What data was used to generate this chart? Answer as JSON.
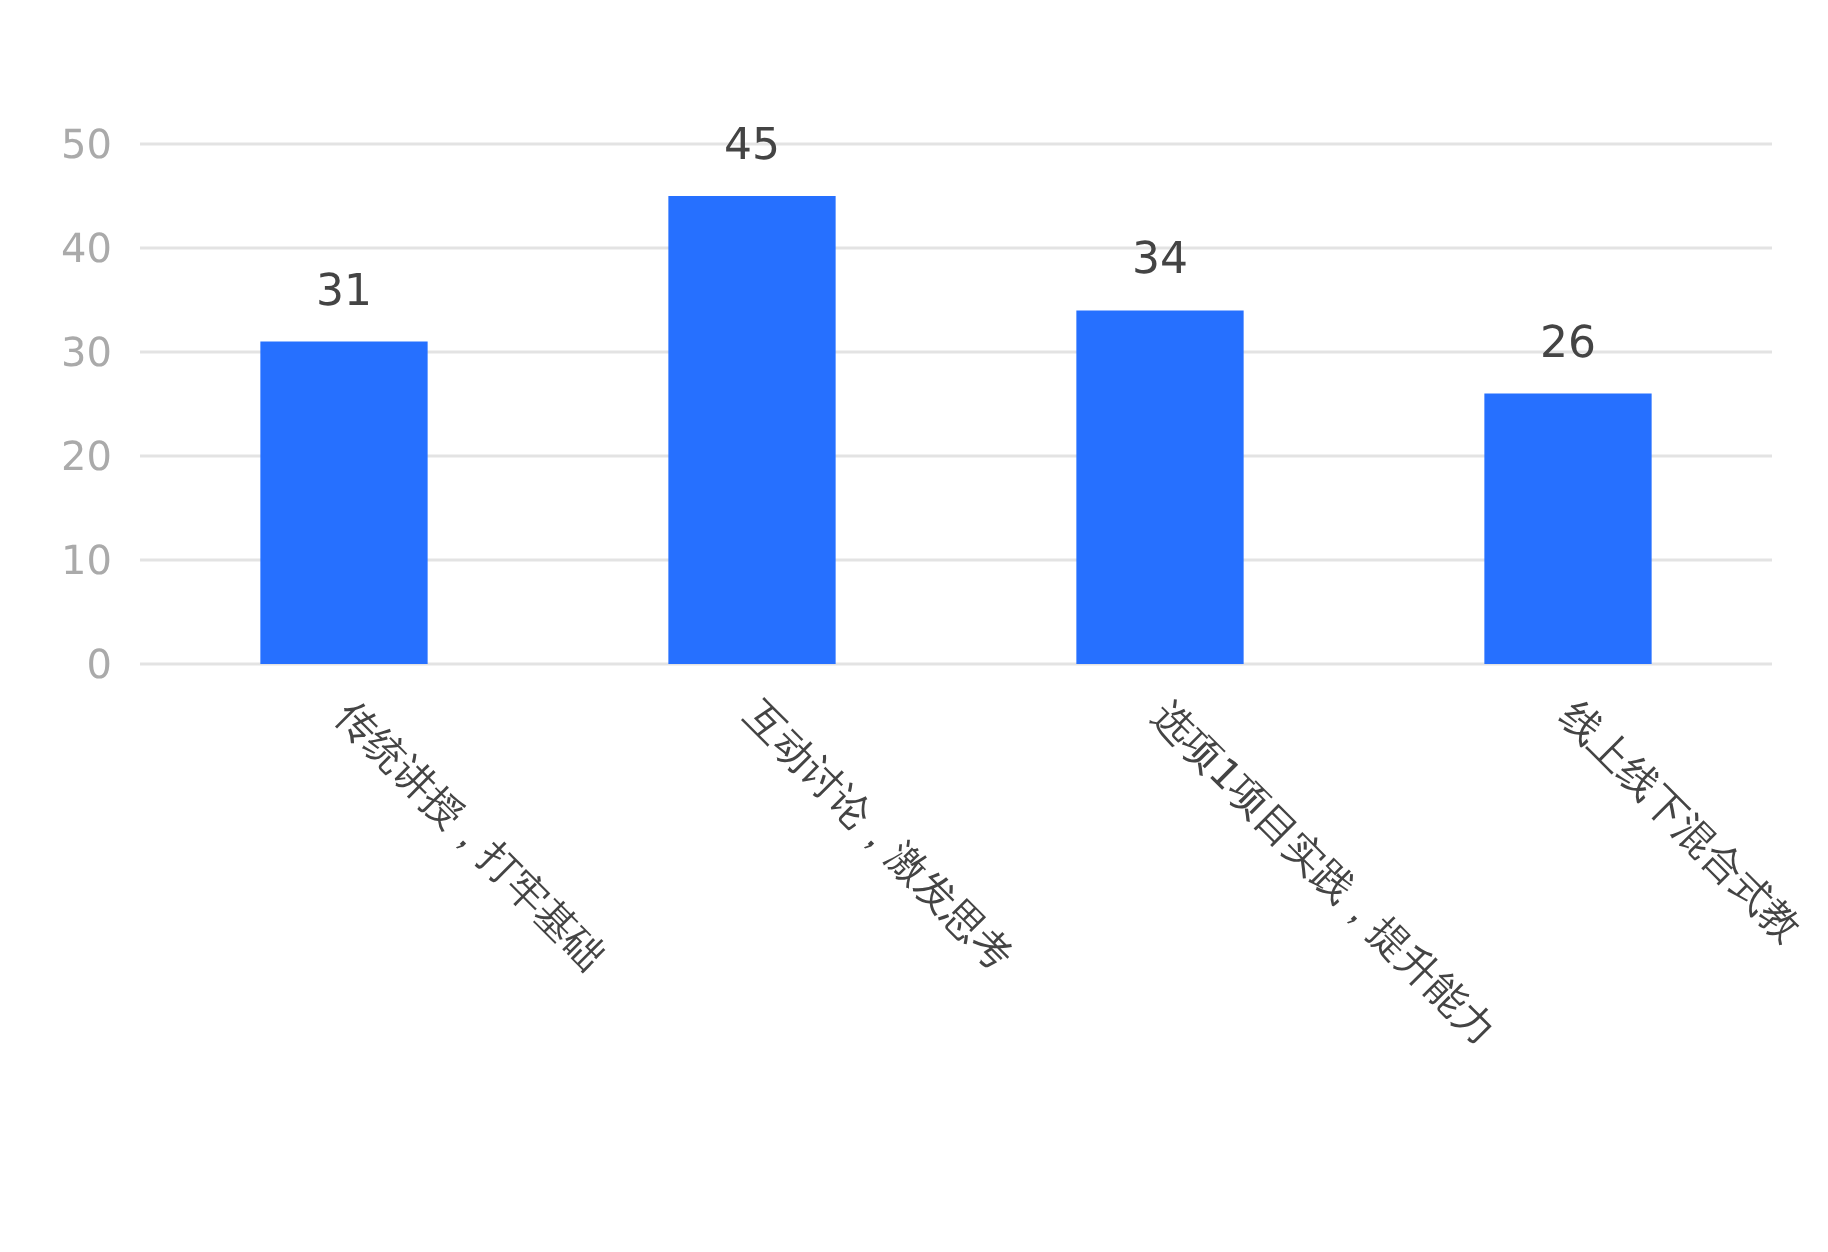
{
  "chart_data": {
    "type": "bar",
    "categories": [
      "传统讲授，打牢基础",
      "互动讨论，激发思考",
      "选项1项目实践，提升能力",
      "线上线下混合式教"
    ],
    "values": [
      31,
      45,
      34,
      26
    ],
    "color": "#2670ff",
    "ylim": [
      0,
      50
    ],
    "yticks": [
      0,
      10,
      20,
      30,
      40,
      50
    ],
    "grid": "y",
    "data_labels": true
  }
}
